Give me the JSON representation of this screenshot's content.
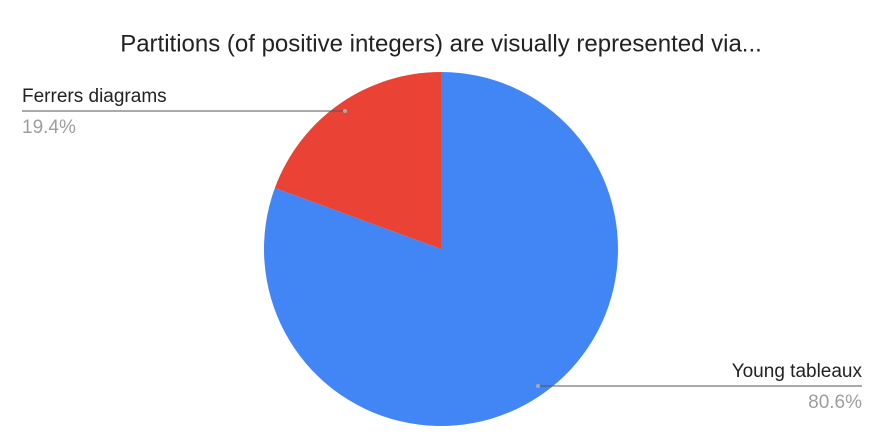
{
  "chart_data": {
    "type": "pie",
    "title": "Partitions (of positive integers) are visually represented via...",
    "categories": [
      "Young tableaux",
      "Ferrers diagrams"
    ],
    "values": [
      80.6,
      19.4
    ],
    "value_labels": [
      "80.6%",
      "19.4%"
    ],
    "colors": [
      "#4285f4",
      "#ea4335"
    ]
  }
}
